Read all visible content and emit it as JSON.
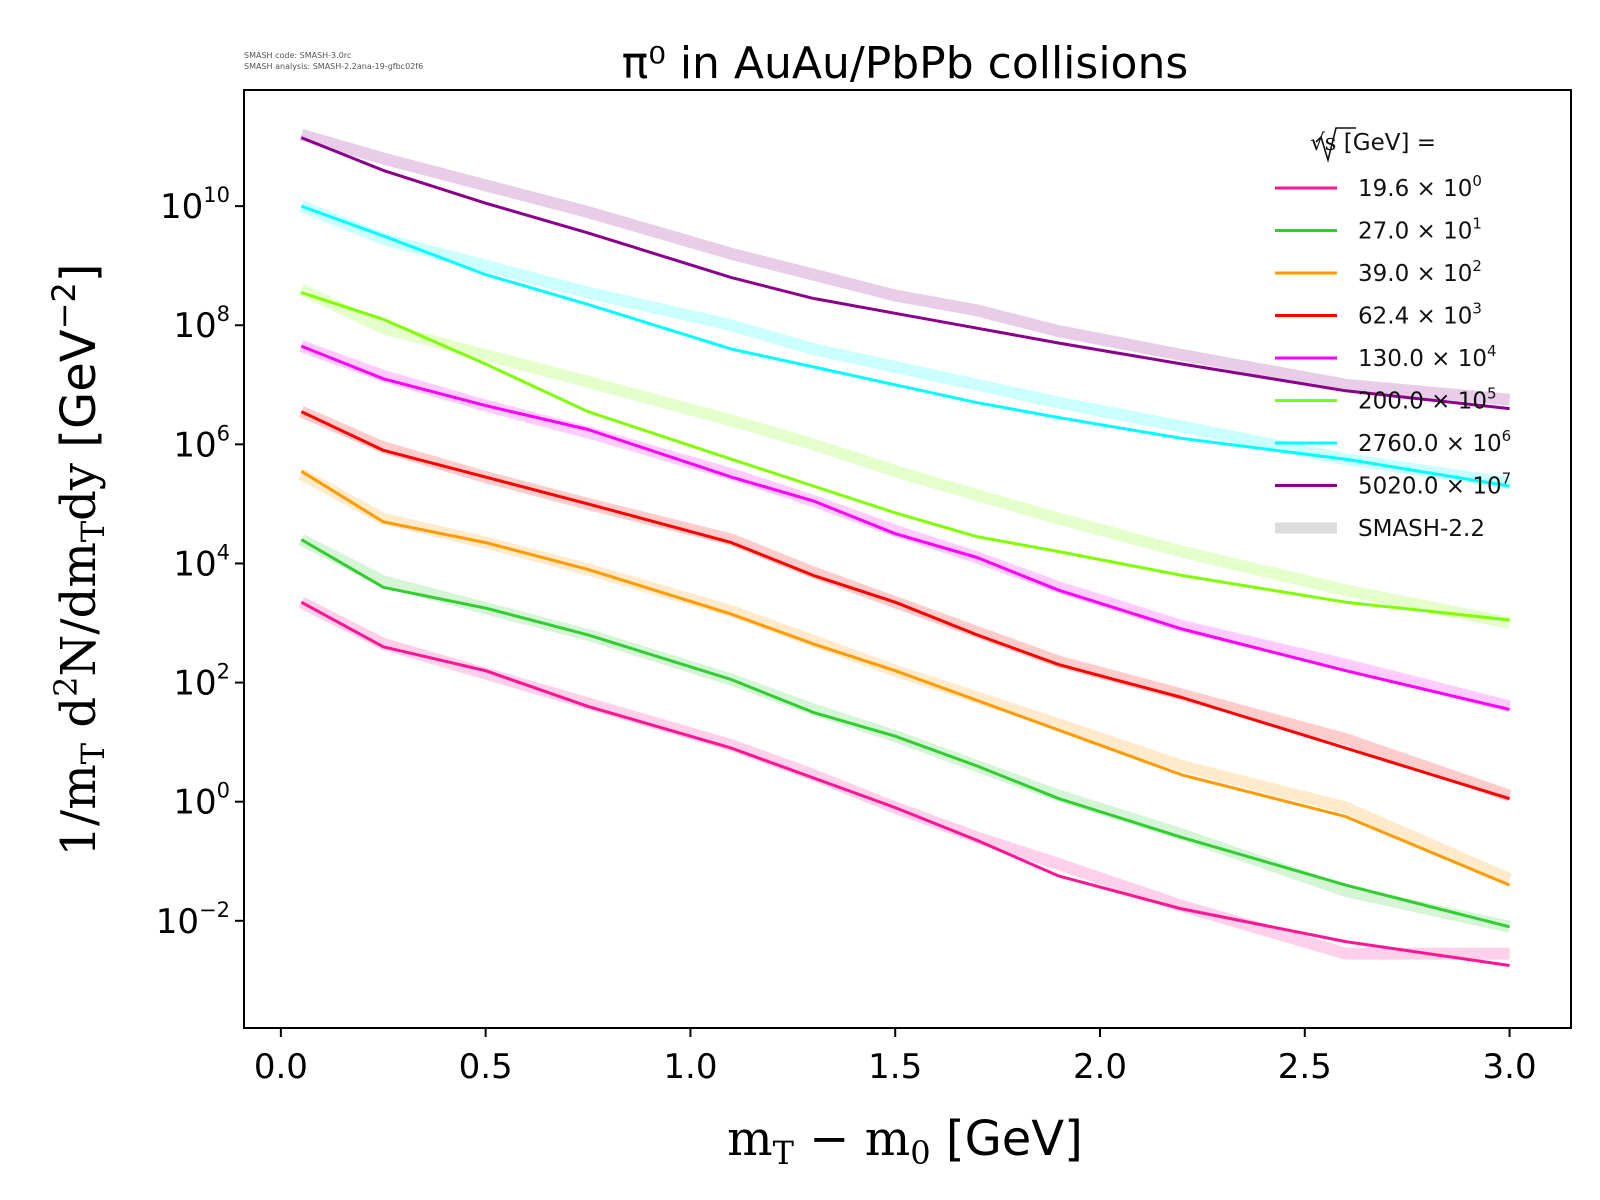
{
  "figure": {
    "title": "π⁰ in AuAu/PbPb collisions",
    "corner_text": [
      "SMASH code:      SMASH-3.0rc",
      "SMASH analysis: SMASH-2.2ana-19-gfbc02f6"
    ]
  },
  "chart_data": {
    "type": "line",
    "title": "π⁰ in AuAu/PbPb collisions",
    "xlabel": {
      "main": "m",
      "sub": "T",
      "minus": " − m",
      "sub2": "0",
      "unit": " [GeV]"
    },
    "ylabel": {
      "text": "1/m",
      "sub": "T",
      "rest1": " d",
      "sup": "2",
      "rest2": "N/dm",
      "sub2": "T",
      "rest3": "dy",
      "unit": " [GeV",
      "unit_exp": "−2",
      "unit_close": "]"
    },
    "xlim": [
      -0.09,
      3.15
    ],
    "ylim_log10": [
      -3.8,
      11.95
    ],
    "yscale": "log",
    "xticks": [
      {
        "v": 0.0,
        "label": "0.0"
      },
      {
        "v": 0.5,
        "label": "0.5"
      },
      {
        "v": 1.0,
        "label": "1.0"
      },
      {
        "v": 1.5,
        "label": "1.5"
      },
      {
        "v": 2.0,
        "label": "2.0"
      },
      {
        "v": 2.5,
        "label": "2.5"
      },
      {
        "v": 3.0,
        "label": "3.0"
      }
    ],
    "yticks": [
      {
        "exp": -2,
        "base": "10",
        "sup": "−2"
      },
      {
        "exp": 0,
        "base": "10",
        "sup": "0"
      },
      {
        "exp": 2,
        "base": "10",
        "sup": "2"
      },
      {
        "exp": 4,
        "base": "10",
        "sup": "4"
      },
      {
        "exp": 6,
        "base": "10",
        "sup": "6"
      },
      {
        "exp": 8,
        "base": "10",
        "sup": "8"
      },
      {
        "exp": 10,
        "base": "10",
        "sup": "10"
      }
    ],
    "legend": {
      "title_pre": "√s",
      "title_post": " [GeV] =",
      "placement": "top-right",
      "ref_label": "SMASH-2.2",
      "ref_color": "#dddddd"
    },
    "x": [
      0.05,
      0.25,
      0.5,
      0.75,
      1.1,
      1.3,
      1.5,
      1.7,
      1.9,
      2.2,
      2.6,
      3.0
    ],
    "series": [
      {
        "name": "19.6",
        "mult": "× 10",
        "exp": "0",
        "color": "#ff1493",
        "log10": [
          3.35,
          2.6,
          2.2,
          1.6,
          0.9,
          0.4,
          -0.1,
          -0.65,
          -1.25,
          -1.8,
          -2.35,
          -2.75
        ],
        "ref_log10": [
          3.35,
          2.65,
          2.15,
          1.65,
          0.95,
          0.45,
          -0.1,
          -0.6,
          -1.05,
          -1.75,
          -2.55,
          -2.55
        ]
      },
      {
        "name": "27.0",
        "mult": "× 10",
        "exp": "1",
        "color": "#32cd32",
        "log10": [
          4.4,
          3.6,
          3.25,
          2.8,
          2.05,
          1.5,
          1.1,
          0.6,
          0.05,
          -0.6,
          -1.4,
          -2.1
        ],
        "ref_log10": [
          4.4,
          3.7,
          3.25,
          2.8,
          2.05,
          1.55,
          1.1,
          0.6,
          0.1,
          -0.55,
          -1.5,
          -2.1
        ]
      },
      {
        "name": "39.0",
        "mult": "× 10",
        "exp": "2",
        "color": "#ff9a00",
        "log10": [
          5.55,
          4.7,
          4.35,
          3.9,
          3.15,
          2.65,
          2.2,
          1.7,
          1.2,
          0.45,
          -0.25,
          -1.4
        ],
        "ref_log10": [
          5.5,
          4.75,
          4.35,
          3.9,
          3.2,
          2.7,
          2.2,
          1.75,
          1.3,
          0.6,
          -0.1,
          -1.3
        ]
      },
      {
        "name": "62.4",
        "mult": "× 10",
        "exp": "3",
        "color": "#ff0000",
        "log10": [
          6.55,
          5.9,
          5.45,
          5.0,
          4.35,
          3.8,
          3.35,
          2.8,
          2.3,
          1.75,
          0.9,
          0.05
        ],
        "ref_log10": [
          6.55,
          5.95,
          5.45,
          5.0,
          4.4,
          3.85,
          3.35,
          2.85,
          2.35,
          1.8,
          1.05,
          0.1
        ]
      },
      {
        "name": "130.0",
        "mult": "× 10",
        "exp": "4",
        "color": "#ff00ff",
        "log10": [
          7.65,
          7.1,
          6.65,
          6.25,
          5.45,
          5.05,
          4.5,
          4.1,
          3.55,
          2.9,
          2.2,
          1.55
        ],
        "ref_log10": [
          7.65,
          7.15,
          6.65,
          6.2,
          5.5,
          5.05,
          4.55,
          4.1,
          3.6,
          2.95,
          2.3,
          1.6
        ]
      },
      {
        "name": "200.0",
        "mult": "× 10",
        "exp": "5",
        "color": "#7fff00",
        "log10": [
          8.55,
          8.1,
          7.35,
          6.55,
          5.75,
          5.3,
          4.85,
          4.45,
          4.2,
          3.8,
          3.35,
          3.05
        ],
        "ref_log10": [
          8.6,
          7.95,
          7.5,
          7.05,
          6.4,
          6.0,
          5.55,
          5.15,
          4.75,
          4.2,
          3.55,
          3.0
        ]
      },
      {
        "name": "2760.0",
        "mult": "× 10",
        "exp": "6",
        "color": "#00ffff",
        "log10": [
          10.0,
          9.5,
          8.85,
          8.35,
          7.6,
          7.3,
          7.0,
          6.7,
          6.45,
          6.1,
          5.75,
          5.3
        ],
        "ref_log10": [
          10.0,
          9.45,
          9.0,
          8.55,
          8.0,
          7.6,
          7.3,
          7.0,
          6.7,
          6.3,
          5.75,
          5.35
        ]
      },
      {
        "name": "5020.0",
        "mult": "× 10",
        "exp": "7",
        "color": "#8b008b",
        "log10": [
          11.15,
          10.6,
          10.05,
          9.55,
          8.8,
          8.45,
          8.2,
          7.95,
          7.7,
          7.35,
          6.9,
          6.6
        ],
        "ref_log10": [
          11.2,
          10.8,
          10.35,
          9.9,
          9.2,
          8.85,
          8.5,
          8.25,
          7.9,
          7.5,
          7.0,
          6.75
        ]
      }
    ]
  }
}
